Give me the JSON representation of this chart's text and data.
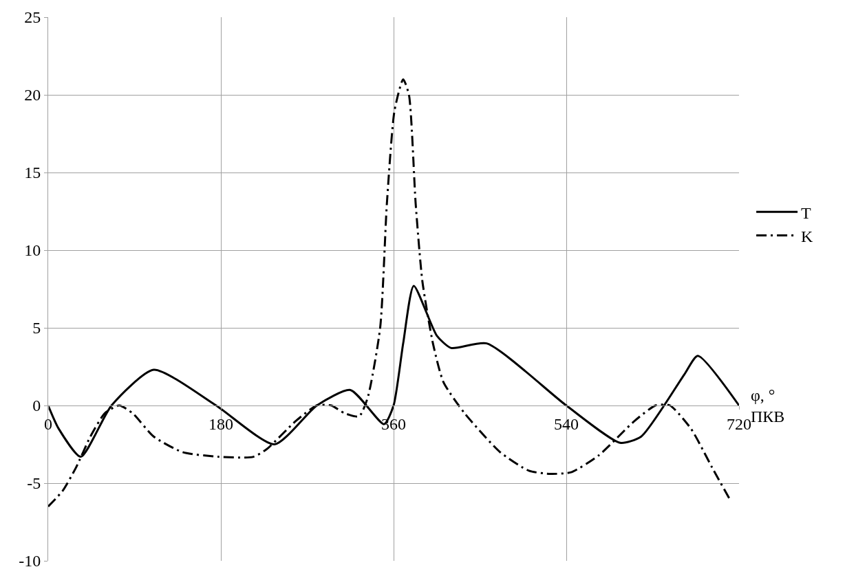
{
  "chart_data": {
    "type": "line",
    "xlabel": "φ, °\nПКВ",
    "xlim": [
      0,
      720
    ],
    "xticks": [
      0,
      180,
      360,
      540,
      720
    ],
    "ylim": [
      -10,
      25
    ],
    "yticks": [
      -10,
      -5,
      0,
      5,
      10,
      15,
      20,
      25
    ],
    "grid": true,
    "legend": "right",
    "marker": "none",
    "series": [
      {
        "name": "T",
        "color": "#000000",
        "line_style": "solid",
        "x": [
          0,
          11,
          34,
          66,
          110,
          175,
          236,
          280,
          315,
          350,
          360,
          370,
          381,
          405,
          420,
          457,
          540,
          596,
          618,
          663,
          677,
          720
        ],
        "values": [
          0,
          -1.5,
          -3.3,
          0,
          2.3,
          0,
          -2.5,
          0,
          1.0,
          -1.2,
          0,
          4,
          7.7,
          4.5,
          3.7,
          4.0,
          0,
          -2.4,
          -2.0,
          2,
          3.2,
          0
        ]
      },
      {
        "name": "K",
        "color": "#000000",
        "line_style": "dashdot",
        "x": [
          0,
          15,
          29,
          44,
          59,
          74,
          88,
          110,
          140,
          177,
          214,
          228,
          258,
          280,
          295,
          309,
          324,
          333,
          346,
          353,
          361,
          370,
          376,
          383,
          390,
          401,
          412,
          434,
          471,
          501,
          523,
          545,
          574,
          611,
          633,
          648,
          670,
          692,
          710
        ],
        "values": [
          -6.5,
          -5.5,
          -4,
          -2,
          -0.5,
          0,
          -0.5,
          -2,
          -3.0,
          -3.3,
          -3.3,
          -2.8,
          -1,
          0,
          0,
          -0.5,
          -0.7,
          0.5,
          5,
          13,
          19,
          21,
          20,
          13,
          8,
          4,
          1.5,
          -0.5,
          -3,
          -4.2,
          -4.4,
          -4.3,
          -3.2,
          -1,
          0,
          0,
          -1.5,
          -4,
          -6
        ]
      }
    ]
  }
}
